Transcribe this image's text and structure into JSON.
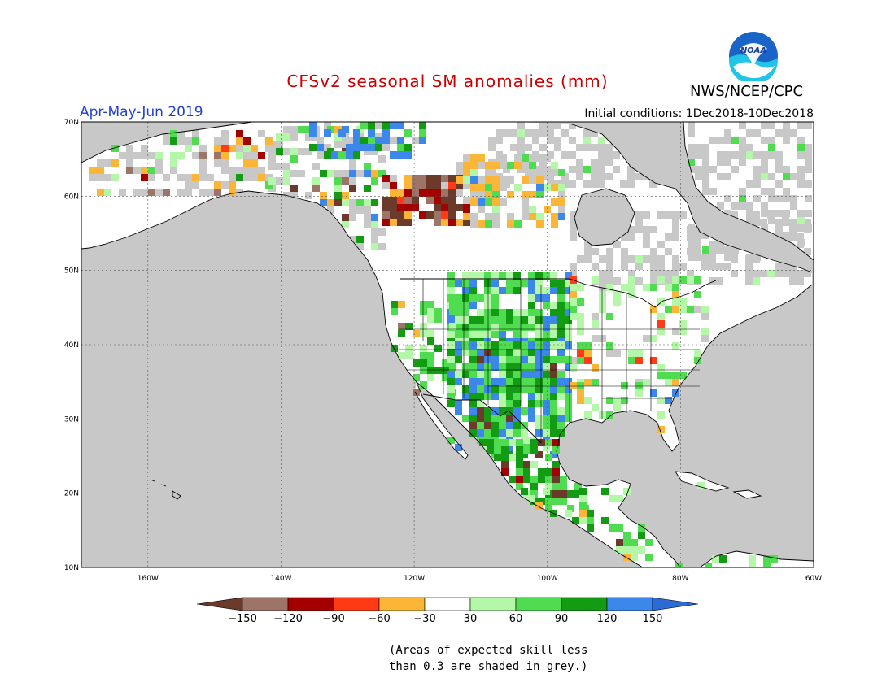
{
  "header": {
    "title": "CFSv2 seasonal SM anomalies (mm)",
    "period": "Apr-May-Jun 2019",
    "agency": "NWS/NCEP/CPC",
    "initial_conditions": "Initial conditions: 1Dec2018-10Dec2018",
    "logo_text": "NOAA"
  },
  "colors": {
    "title": "#cc0000",
    "period": "#1f3fd6",
    "no_skill_grey": "#c8c8c8",
    "land_neutral": "#ffffff"
  },
  "map": {
    "lat_labels": [
      "70N",
      "60N",
      "50N",
      "40N",
      "30N",
      "20N",
      "10N"
    ],
    "lon_labels": [
      "160W",
      "140W",
      "120W",
      "100W",
      "80W",
      "60W"
    ]
  },
  "legend": {
    "tick_labels": [
      "-150",
      "-120",
      "-90",
      "-60",
      "-30",
      "30",
      "60",
      "90",
      "120",
      "150"
    ],
    "bins": [
      {
        "color": "#6b3a2a"
      },
      {
        "color": "#9c7468"
      },
      {
        "color": "#a50000"
      },
      {
        "color": "#ff3a14"
      },
      {
        "color": "#fbb637"
      },
      {
        "color": "#ffffff"
      },
      {
        "color": "#b4f7a8"
      },
      {
        "color": "#50dc50"
      },
      {
        "color": "#139c13"
      },
      {
        "color": "#3b88ea"
      },
      {
        "color": "#2c6ad6"
      }
    ]
  },
  "footnote": {
    "line1": "(Areas of expected skill less",
    "line2": "than 0.3 are shaded in grey.)"
  }
}
